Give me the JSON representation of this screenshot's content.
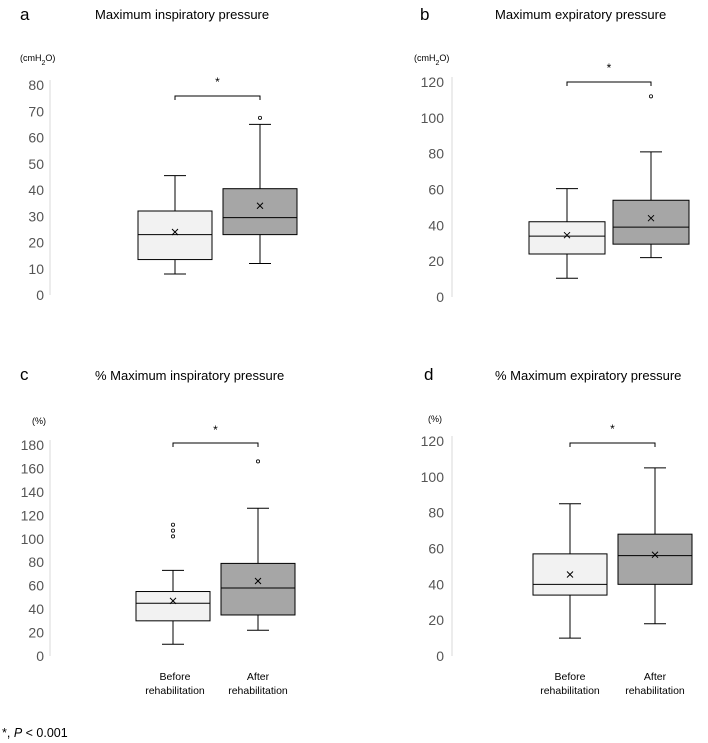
{
  "chart_data": [
    {
      "type": "box",
      "panel_letter": "a",
      "title": "Maximum  inspiratory pressure",
      "unit_label": "(cmH2O)",
      "ylim": [
        0,
        80
      ],
      "yticks": [
        "0",
        "10",
        "20",
        "30",
        "40",
        "50",
        "60",
        "70",
        "80"
      ],
      "categories": [
        "Before rehabilitation",
        "After rehabilitation"
      ],
      "boxes": [
        {
          "min": 8,
          "q1": 13.5,
          "median": 23,
          "q3": 32,
          "max": 45.5,
          "mean": 24,
          "outliers": [],
          "color": "#f2f2f2"
        },
        {
          "min": 12,
          "q1": 23,
          "median": 29.5,
          "q3": 40.5,
          "max": 65,
          "mean": 34,
          "outliers": [
            67.5
          ],
          "color": "#a6a6a6"
        }
      ],
      "significance": "*"
    },
    {
      "type": "box",
      "panel_letter": "b",
      "title": "Maximum  expiratory pressure",
      "unit_label": "(cmH2O)",
      "ylim": [
        0,
        120
      ],
      "yticks": [
        "0",
        "20",
        "40",
        "60",
        "80",
        "100",
        "120"
      ],
      "categories": [
        "Before rehabilitation",
        "After rehabilitation"
      ],
      "boxes": [
        {
          "min": 10.5,
          "q1": 24,
          "median": 34,
          "q3": 42,
          "max": 60.5,
          "mean": 34.5,
          "outliers": [],
          "color": "#f2f2f2"
        },
        {
          "min": 22,
          "q1": 29.5,
          "median": 39,
          "q3": 54,
          "max": 81,
          "mean": 44,
          "outliers": [
            112
          ],
          "color": "#a6a6a6"
        }
      ],
      "significance": "*"
    },
    {
      "type": "box",
      "panel_letter": "c",
      "title": "% Maximum  inspiratory pressure",
      "unit_label": "(%)",
      "ylim": [
        0,
        180
      ],
      "yticks": [
        "0",
        "20",
        "40",
        "60",
        "80",
        "100",
        "120",
        "140",
        "160",
        "180"
      ],
      "categories": [
        "Before rehabilitation",
        "After rehabilitation"
      ],
      "boxes": [
        {
          "min": 10,
          "q1": 30,
          "median": 45,
          "q3": 55,
          "max": 73,
          "mean": 47,
          "outliers": [
            102,
            107,
            112
          ],
          "color": "#f2f2f2"
        },
        {
          "min": 22,
          "q1": 35,
          "median": 58,
          "q3": 79,
          "max": 126,
          "mean": 64,
          "outliers": [
            166
          ],
          "color": "#a6a6a6"
        }
      ],
      "significance": "*"
    },
    {
      "type": "box",
      "panel_letter": "d",
      "title": "% Maximum  expiratory pressure",
      "unit_label": "(%)",
      "ylim": [
        0,
        120
      ],
      "yticks": [
        "0",
        "20",
        "40",
        "60",
        "80",
        "100",
        "120"
      ],
      "categories": [
        "Before rehabilitation",
        "After rehabilitation"
      ],
      "boxes": [
        {
          "min": 10,
          "q1": 34,
          "median": 40,
          "q3": 57,
          "max": 85,
          "mean": 45.5,
          "outliers": [],
          "color": "#f2f2f2"
        },
        {
          "min": 18,
          "q1": 40,
          "median": 56,
          "q3": 68,
          "max": 105,
          "mean": 56.5,
          "outliers": [],
          "color": "#a6a6a6"
        }
      ],
      "significance": "*"
    }
  ],
  "x_labels": [
    [
      "Before",
      "rehabilitation"
    ],
    [
      "After",
      "rehabilitation"
    ]
  ],
  "footnote": {
    "prefix": "*, ",
    "p_symbol": "P",
    "suffix": " < 0.001"
  }
}
